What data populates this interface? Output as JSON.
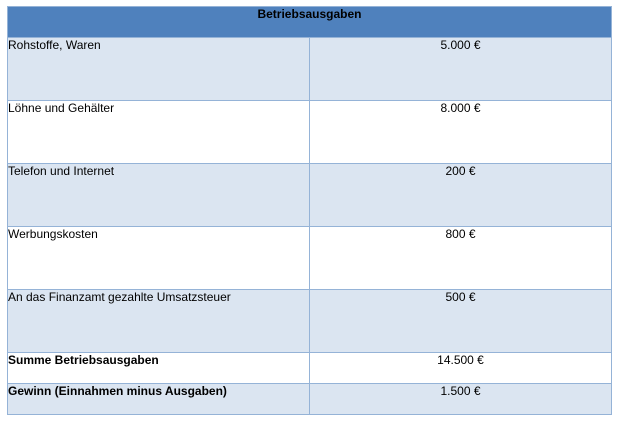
{
  "table": {
    "title": "Betriebsausgaben",
    "rows": [
      {
        "label": "Rohstoffe, Waren",
        "value": "5.000 €"
      },
      {
        "label": "Löhne und Gehälter",
        "value": "8.000 €"
      },
      {
        "label": "Telefon und Internet",
        "value": "200 €"
      },
      {
        "label": "Werbungskosten",
        "value": "800 €"
      },
      {
        "label": "An das Finanzamt gezahlte Umsatzsteuer",
        "value": "500 €"
      },
      {
        "label": "Summe Betriebsausgaben",
        "value": "14.500 €"
      },
      {
        "label": "Gewinn (Einnahmen minus Ausgaben)",
        "value": "1.500 €"
      }
    ]
  },
  "colors": {
    "header": "#4f81bd",
    "band": "#dbe5f1",
    "border": "#95b3d7"
  }
}
